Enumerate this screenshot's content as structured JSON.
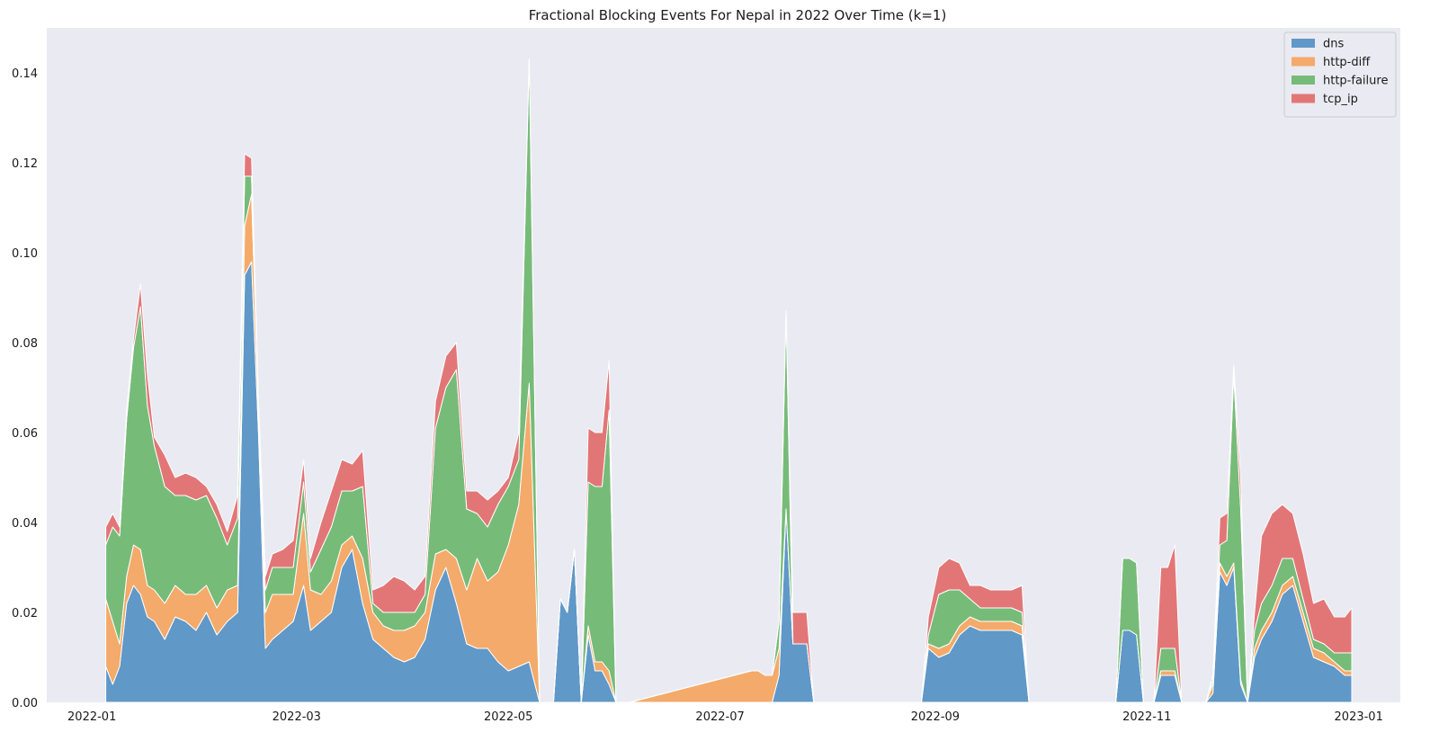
{
  "chart_data": {
    "type": "area",
    "stacked": true,
    "title": "Fractional Blocking Events For Nepal in 2022 Over Time (k=1)",
    "xlabel": "",
    "ylabel": "",
    "xlim": [
      "2021-12-19",
      "2023-01-13"
    ],
    "ylim": [
      0,
      0.15
    ],
    "grid": false,
    "legend_position": "top-right",
    "background": "#eaeaf2",
    "x_ticks": [
      "2022-01",
      "2022-03",
      "2022-05",
      "2022-07",
      "2022-09",
      "2022-11",
      "2023-01"
    ],
    "x_tick_dates": [
      "2022-01-01",
      "2022-03-01",
      "2022-05-01",
      "2022-07-01",
      "2022-09-01",
      "2022-11-01",
      "2023-01-01"
    ],
    "y_ticks": [
      "0.00",
      "0.02",
      "0.04",
      "0.06",
      "0.08",
      "0.10",
      "0.12",
      "0.14"
    ],
    "y_tick_values": [
      0,
      0.02,
      0.04,
      0.06,
      0.08,
      0.1,
      0.12,
      0.14
    ],
    "x": [
      "2022-01-05",
      "2022-01-07",
      "2022-01-09",
      "2022-01-11",
      "2022-01-13",
      "2022-01-15",
      "2022-01-17",
      "2022-01-19",
      "2022-01-22",
      "2022-01-25",
      "2022-01-28",
      "2022-01-31",
      "2022-02-03",
      "2022-02-06",
      "2022-02-09",
      "2022-02-12",
      "2022-02-14",
      "2022-02-16",
      "2022-02-18",
      "2022-02-20",
      "2022-02-22",
      "2022-02-25",
      "2022-02-28",
      "2022-03-03",
      "2022-03-05",
      "2022-03-08",
      "2022-03-11",
      "2022-03-14",
      "2022-03-17",
      "2022-03-20",
      "2022-03-23",
      "2022-03-26",
      "2022-03-29",
      "2022-04-01",
      "2022-04-04",
      "2022-04-07",
      "2022-04-10",
      "2022-04-13",
      "2022-04-16",
      "2022-04-19",
      "2022-04-22",
      "2022-04-25",
      "2022-04-28",
      "2022-05-01",
      "2022-05-04",
      "2022-05-07",
      "2022-05-10",
      "2022-05-12",
      "2022-05-14",
      "2022-05-16",
      "2022-05-18",
      "2022-05-20",
      "2022-05-22",
      "2022-05-24",
      "2022-05-26",
      "2022-05-28",
      "2022-05-30",
      "2022-06-01",
      "2022-06-03",
      "2022-06-05",
      "2022-07-10",
      "2022-07-12",
      "2022-07-14",
      "2022-07-16",
      "2022-07-18",
      "2022-07-20",
      "2022-07-22",
      "2022-07-24",
      "2022-07-26",
      "2022-07-28",
      "2022-07-30",
      "2022-08-28",
      "2022-08-30",
      "2022-09-02",
      "2022-09-05",
      "2022-09-08",
      "2022-09-11",
      "2022-09-14",
      "2022-09-17",
      "2022-09-20",
      "2022-09-23",
      "2022-09-26",
      "2022-09-28",
      "2022-10-23",
      "2022-10-25",
      "2022-10-27",
      "2022-10-29",
      "2022-10-31",
      "2022-11-03",
      "2022-11-05",
      "2022-11-07",
      "2022-11-09",
      "2022-11-11",
      "2022-11-18",
      "2022-11-20",
      "2022-11-22",
      "2022-11-24",
      "2022-11-26",
      "2022-11-28",
      "2022-11-30",
      "2022-12-02",
      "2022-12-04",
      "2022-12-07",
      "2022-12-10",
      "2022-12-13",
      "2022-12-16",
      "2022-12-19",
      "2022-12-22",
      "2022-12-25",
      "2022-12-28",
      "2022-12-30"
    ],
    "series": [
      {
        "name": "dns",
        "color": "#4c8cc2",
        "values": [
          0.008,
          0.004,
          0.008,
          0.022,
          0.026,
          0.024,
          0.019,
          0.018,
          0.014,
          0.019,
          0.018,
          0.016,
          0.02,
          0.015,
          0.018,
          0.02,
          0.095,
          0.098,
          0.06,
          0.012,
          0.014,
          0.016,
          0.018,
          0.026,
          0.016,
          0.018,
          0.02,
          0.03,
          0.034,
          0.022,
          0.014,
          0.012,
          0.01,
          0.009,
          0.01,
          0.014,
          0.025,
          0.03,
          0.022,
          0.013,
          0.012,
          0.012,
          0.009,
          0.007,
          0.008,
          0.009,
          0,
          0,
          0,
          0.023,
          0.02,
          0.034,
          0,
          0.015,
          0.007,
          0.007,
          0.004,
          0,
          0,
          0,
          0,
          0,
          0,
          0,
          0.006,
          0.043,
          0.013,
          0.013,
          0.013,
          0,
          0,
          0,
          0.012,
          0.01,
          0.011,
          0.015,
          0.017,
          0.016,
          0.016,
          0.016,
          0.016,
          0.015,
          0,
          0,
          0.016,
          0.016,
          0.015,
          0,
          0,
          0.006,
          0.006,
          0.006,
          0,
          0,
          0.002,
          0.029,
          0.026,
          0.03,
          0.004,
          0,
          0.01,
          0.014,
          0.018,
          0.024,
          0.026,
          0.018,
          0.01,
          0.009,
          0.008,
          0.006,
          0.006
        ]
      },
      {
        "name": "http-diff",
        "color": "#f5a056",
        "values": [
          0.015,
          0.014,
          0.005,
          0.006,
          0.009,
          0.01,
          0.007,
          0.007,
          0.008,
          0.007,
          0.006,
          0.008,
          0.006,
          0.006,
          0.007,
          0.006,
          0.011,
          0.015,
          0.005,
          0.008,
          0.01,
          0.008,
          0.006,
          0.016,
          0.009,
          0.006,
          0.007,
          0.005,
          0.003,
          0.01,
          0.006,
          0.005,
          0.006,
          0.007,
          0.007,
          0.006,
          0.008,
          0.004,
          0.01,
          0.012,
          0.02,
          0.015,
          0.02,
          0.028,
          0.036,
          0.062,
          0,
          0,
          0,
          0,
          0,
          0,
          0,
          0.002,
          0.002,
          0.002,
          0.003,
          0,
          0,
          0,
          0.007,
          0.007,
          0.006,
          0.006,
          0.006,
          0,
          0,
          0,
          0,
          0,
          0,
          0,
          0.001,
          0.002,
          0.002,
          0.002,
          0.002,
          0.002,
          0.002,
          0.002,
          0.002,
          0.002,
          0,
          0,
          0,
          0,
          0,
          0,
          0,
          0.001,
          0.001,
          0.001,
          0,
          0,
          0.002,
          0.002,
          0.002,
          0.001,
          0.001,
          0,
          0.002,
          0.002,
          0.002,
          0.002,
          0.002,
          0.002,
          0.002,
          0.002,
          0.001,
          0.001,
          0.001
        ]
      },
      {
        "name": "http-failure",
        "color": "#66b466",
        "values": [
          0.012,
          0.021,
          0.024,
          0.035,
          0.044,
          0.054,
          0.04,
          0.032,
          0.026,
          0.02,
          0.022,
          0.021,
          0.02,
          0.02,
          0.01,
          0.015,
          0.011,
          0.004,
          0.002,
          0.005,
          0.006,
          0.006,
          0.006,
          0.007,
          0.004,
          0.01,
          0.012,
          0.012,
          0.01,
          0.016,
          0.002,
          0.003,
          0.004,
          0.004,
          0.003,
          0.004,
          0.028,
          0.036,
          0.042,
          0.018,
          0.01,
          0.012,
          0.015,
          0.013,
          0.01,
          0.072,
          0,
          0,
          0,
          0,
          0,
          0,
          0,
          0.032,
          0.039,
          0.039,
          0.058,
          0,
          0,
          0,
          0,
          0,
          0,
          0,
          0.006,
          0.044,
          0,
          0,
          0,
          0,
          0,
          0,
          0.002,
          0.012,
          0.012,
          0.008,
          0.004,
          0.003,
          0.003,
          0.003,
          0.003,
          0.003,
          0,
          0,
          0.016,
          0.016,
          0.016,
          0,
          0,
          0.005,
          0.005,
          0.005,
          0,
          0,
          0.001,
          0.004,
          0.008,
          0.042,
          0.038,
          0,
          0.004,
          0.006,
          0.006,
          0.006,
          0.004,
          0.003,
          0.002,
          0.002,
          0.002,
          0.004,
          0.004
        ]
      },
      {
        "name": "tcp_ip",
        "color": "#e06565",
        "values": [
          0.004,
          0.003,
          0.002,
          0.002,
          0.002,
          0.005,
          0.007,
          0.002,
          0.007,
          0.004,
          0.005,
          0.005,
          0.002,
          0.003,
          0.003,
          0.005,
          0.005,
          0.004,
          0,
          0.003,
          0.003,
          0.004,
          0.006,
          0.005,
          0.003,
          0.006,
          0.008,
          0.007,
          0.006,
          0.008,
          0.003,
          0.006,
          0.008,
          0.007,
          0.005,
          0.004,
          0.006,
          0.007,
          0.006,
          0.004,
          0.005,
          0.006,
          0.003,
          0.002,
          0.006,
          0,
          0,
          0,
          0,
          0,
          0,
          0,
          0,
          0.012,
          0.012,
          0.012,
          0.011,
          0,
          0,
          0,
          0,
          0,
          0,
          0,
          0,
          0,
          0.007,
          0.007,
          0.007,
          0,
          0,
          0,
          0.004,
          0.006,
          0.007,
          0.006,
          0.003,
          0.005,
          0.004,
          0.004,
          0.004,
          0.006,
          0,
          0,
          0,
          0,
          0,
          0,
          0,
          0.018,
          0.018,
          0.023,
          0,
          0,
          0.001,
          0.006,
          0.006,
          0.002,
          0.007,
          0,
          0.004,
          0.015,
          0.016,
          0.012,
          0.01,
          0.01,
          0.008,
          0.01,
          0.008,
          0.008,
          0.01
        ]
      }
    ]
  }
}
